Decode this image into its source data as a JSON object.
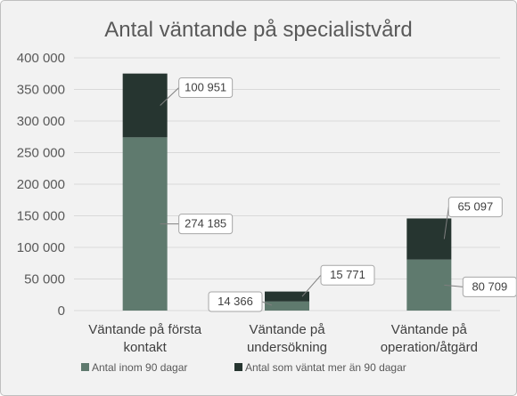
{
  "chart_data": {
    "type": "bar",
    "stacked": true,
    "title": "Antal väntande på specialistvård",
    "categories": [
      [
        "Väntande på första",
        "kontakt"
      ],
      [
        "Väntande på",
        "undersökning"
      ],
      [
        "Väntande på",
        "operation/åtgärd"
      ]
    ],
    "series": [
      {
        "name": "Antal inom 90 dagar",
        "color": "#5f7a6e",
        "values": [
          274185,
          14366,
          80709
        ],
        "labels": [
          "274 185",
          "14 366",
          "80 709"
        ]
      },
      {
        "name": "Antal som väntat mer än 90 dagar",
        "color": "#263530",
        "values": [
          100951,
          15771,
          65097
        ],
        "labels": [
          "100 951",
          "15 771",
          "65 097"
        ]
      }
    ],
    "ylim": [
      0,
      400000
    ],
    "yticks": [
      0,
      50000,
      100000,
      150000,
      200000,
      250000,
      300000,
      350000,
      400000
    ],
    "ytick_labels": [
      "0",
      "50 000",
      "100 000",
      "150 000",
      "200 000",
      "250 000",
      "300 000",
      "350 000",
      "400 000"
    ],
    "grid": true,
    "legend": "bottom",
    "xlabel": "",
    "ylabel": ""
  }
}
